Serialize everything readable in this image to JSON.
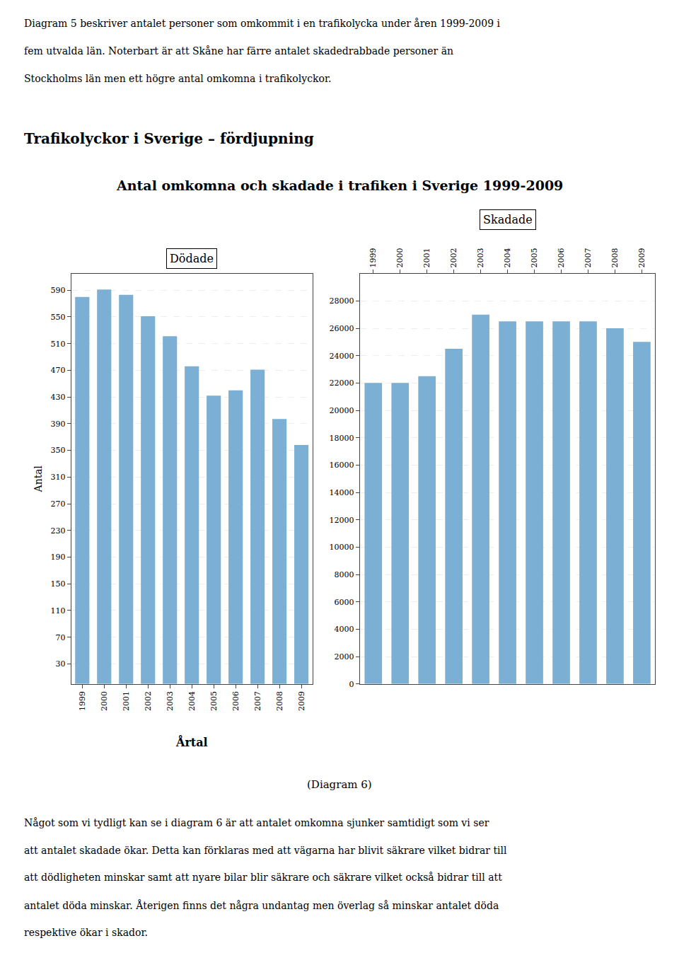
{
  "title": "Antal omkomna och skadade i trafiken i Sverige 1999-2009",
  "section_title": "Trafikolyckor i Sverige – fördjupning",
  "intro_text": [
    "Diagram 5 beskriver antalet personer som omkommit i en trafikolycka under åren 1999-2009 i",
    "fem utvalda län. Noterbart är att Skåne har färre antalet skadedrabbade personer än",
    "Stockholms län men ett högre antal omkomna i trafikolyckor."
  ],
  "caption": "(Diagram 6)",
  "body_text": [
    "Något som vi tydligt kan se i diagram 6 är att antalet omkomna sjunker samtidigt som vi ser",
    "att antalet skadade ökar. Detta kan förklaras med att vägarna har blivit säkrare vilket bidrar till",
    "att dödligheten minskar samt att nyare bilar blir säkrare och säkrare vilket också bidrar till att",
    "antalet döda minskar. Återigen finns det några undantag men överlag så minskar antalet döda",
    "respektive ökar i skador."
  ],
  "chart_data": [
    {
      "type": "bar",
      "title": "Dödade",
      "categories": [
        "1999",
        "2000",
        "2001",
        "2002",
        "2003",
        "2004",
        "2005",
        "2006",
        "2007",
        "2008",
        "2009"
      ],
      "values": [
        580,
        591,
        583,
        551,
        521,
        476,
        432,
        440,
        471,
        397,
        358
      ],
      "color": "#7BAFD4",
      "xlabel": "Årtal",
      "ylabel": "Antal",
      "ylim": [
        0,
        615
      ],
      "yticks": [
        30,
        70,
        110,
        150,
        190,
        230,
        270,
        310,
        350,
        390,
        430,
        470,
        510,
        550,
        590
      ],
      "grid": true
    },
    {
      "type": "bar",
      "title": "Skadade",
      "categories": [
        "1999",
        "2000",
        "2001",
        "2002",
        "2003",
        "2004",
        "2005",
        "2006",
        "2007",
        "2008",
        "2009"
      ],
      "values": [
        22000,
        22000,
        22500,
        24500,
        27000,
        26500,
        26500,
        26500,
        26500,
        26000,
        25000
      ],
      "color": "#7BAFD4",
      "ylim": [
        0,
        30000
      ],
      "yticks": [
        0,
        2000,
        4000,
        6000,
        8000,
        10000,
        12000,
        14000,
        16000,
        18000,
        20000,
        22000,
        24000,
        26000,
        28000
      ],
      "grid": true
    }
  ]
}
